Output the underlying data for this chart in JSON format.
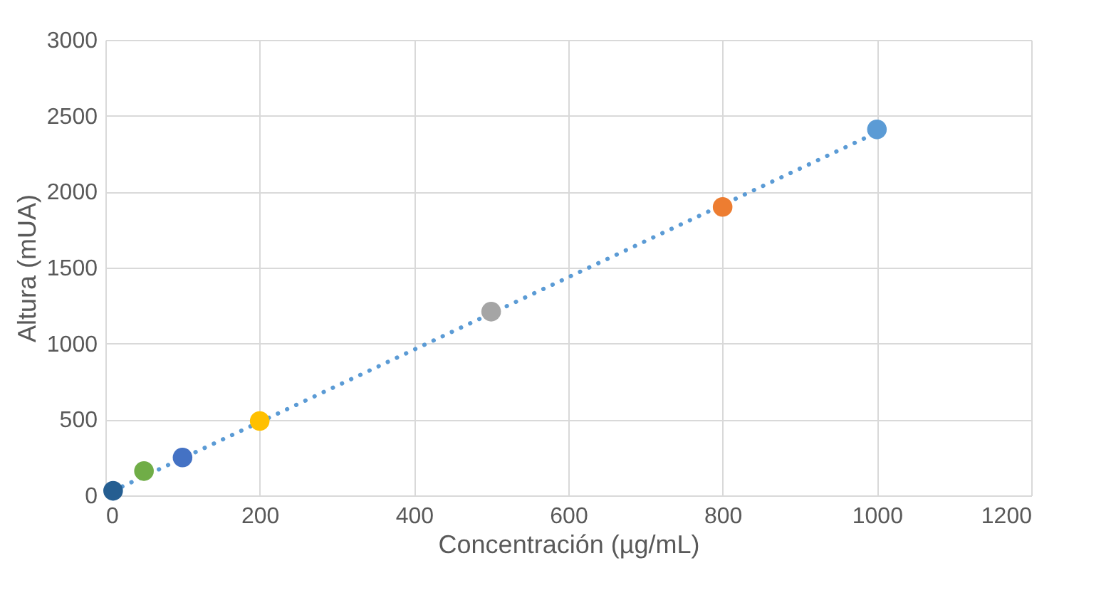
{
  "chart_data": {
    "type": "scatter",
    "xlabel": "Concentración (µg/mL)",
    "ylabel": "Altura (mUA)",
    "x": [
      10,
      50,
      100,
      200,
      500,
      800,
      1000
    ],
    "xlim": [
      0,
      1200
    ],
    "xticks": [
      0,
      200,
      400,
      600,
      800,
      1000,
      1200
    ],
    "ylim": [
      0,
      3000
    ],
    "yticks": [
      0,
      500,
      1000,
      1500,
      2000,
      2500,
      3000
    ],
    "grid": true,
    "legend": false,
    "series": [
      {
        "marker": "circle",
        "values": [
          30,
          160,
          250,
          490,
          1210,
          1900,
          2410
        ],
        "colors": [
          "#255e91",
          "#70ad47",
          "#4472c4",
          "#ffc000",
          "#a5a5a5",
          "#ed7d31",
          "#5b9bd5"
        ]
      },
      {
        "type": "line",
        "x": [
          10,
          1000
        ],
        "values": [
          30,
          2390
        ],
        "color": "#5b9bd5",
        "line_style": "dotted"
      }
    ]
  }
}
